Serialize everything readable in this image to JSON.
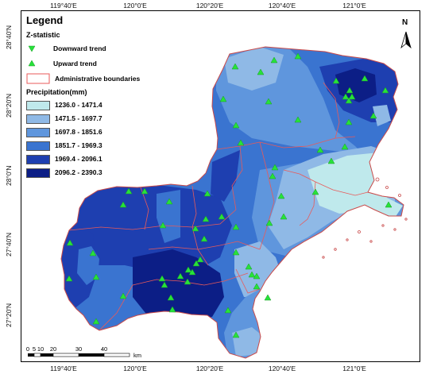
{
  "legend": {
    "title": "Legend",
    "zstat_title": "Z-statistic",
    "downward_label": "Downward trend",
    "upward_label": "Upward trend",
    "admin_label": "Administrative boundaries",
    "precip_title": "Precipitation(mm)",
    "classes": [
      {
        "label": "1236.0 - 1471.4",
        "color": "#bfe9ec"
      },
      {
        "label": "1471.5 - 1697.7",
        "color": "#8fb9e6"
      },
      {
        "label": "1697.8 - 1851.6",
        "color": "#5f96dd"
      },
      {
        "label": "1851.7 - 1969.3",
        "color": "#3a74d0"
      },
      {
        "label": "1969.4 - 2096.1",
        "color": "#1e3fb0"
      },
      {
        "label": "2096.2 - 2390.3",
        "color": "#0c1e86"
      }
    ]
  },
  "axes": {
    "top_ticks": [
      "119°40'E",
      "120°0'E",
      "120°20'E",
      "120°40'E",
      "121°0'E"
    ],
    "bottom_ticks": [
      "119°40'E",
      "120°0'E",
      "120°20'E",
      "120°40'E",
      "121°0'E"
    ],
    "left_ticks": [
      "28°40'N",
      "28°20'N",
      "28°0'N",
      "27°40'N",
      "27°20'N"
    ]
  },
  "north_arrow": {
    "letter": "N",
    "icon": "north-arrow-icon"
  },
  "scale_bar": {
    "labels": [
      "0",
      "5",
      "10",
      "20",
      "30",
      "40"
    ],
    "unit": "km"
  },
  "colors": {
    "upward_marker": "#27e23a",
    "downward_marker": "#27e23a",
    "admin_boundary": "#e85a5a",
    "map_outline": "#c94a4a"
  }
}
